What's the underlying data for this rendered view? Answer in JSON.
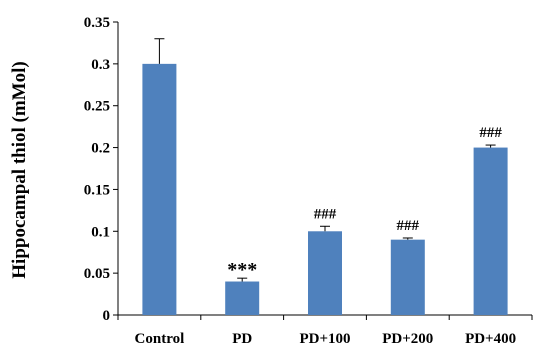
{
  "chart_data": {
    "type": "bar",
    "title": "",
    "xlabel": "",
    "ylabel": "Hippocampal thiol (mMol)",
    "categories": [
      "Control",
      "PD",
      "PD+100",
      "PD+200",
      "PD+400"
    ],
    "values": [
      0.3,
      0.04,
      0.1,
      0.09,
      0.2
    ],
    "errors": [
      0.03,
      0.004,
      0.006,
      0.002,
      0.003
    ],
    "annotations": [
      "",
      "***",
      "###",
      "###",
      "###"
    ],
    "ylim": [
      0,
      0.35
    ],
    "yticks": [
      "0",
      "0.05",
      "0.1",
      "0.15",
      "0.2",
      "0.25",
      "0.3",
      "0.35"
    ],
    "ytick_values": [
      0,
      0.05,
      0.1,
      0.15,
      0.2,
      0.25,
      0.3,
      0.35
    ],
    "grid": false,
    "legend": "none",
    "bar_color": "#4F81BD",
    "error_color": "#000000"
  }
}
